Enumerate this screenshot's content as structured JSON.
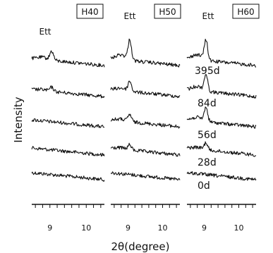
{
  "chart_data": {
    "type": "line",
    "xlabel": "2θ(degree)",
    "ylabel": "Intensity",
    "xlim": [
      8.5,
      10.5
    ],
    "xticks": [
      9,
      10
    ],
    "samples": [
      "0d",
      "28d",
      "56d",
      "84d",
      "395d"
    ],
    "panels": [
      {
        "name": "H40",
        "annotation": "Ett",
        "series": [
          {
            "name": "0d",
            "peak_2theta": 9.05,
            "peak_height": 0.0
          },
          {
            "name": "28d",
            "peak_2theta": 9.05,
            "peak_height": 0.0
          },
          {
            "name": "56d",
            "peak_2theta": 9.05,
            "peak_height": 0.0
          },
          {
            "name": "84d",
            "peak_2theta": 9.05,
            "peak_height": 0.2
          },
          {
            "name": "395d",
            "peak_2theta": 9.05,
            "peak_height": 0.45
          }
        ]
      },
      {
        "name": "H50",
        "annotation": "Ett",
        "series": [
          {
            "name": "0d",
            "peak_2theta": 9.05,
            "peak_height": 0.0
          },
          {
            "name": "28d",
            "peak_2theta": 9.05,
            "peak_height": 0.25
          },
          {
            "name": "56d",
            "peak_2theta": 9.05,
            "peak_height": 0.35
          },
          {
            "name": "84d",
            "peak_2theta": 9.05,
            "peak_height": 0.5
          },
          {
            "name": "395d",
            "peak_2theta": 9.05,
            "peak_height": 1.0
          }
        ]
      },
      {
        "name": "H60",
        "annotation": "Ett",
        "series": [
          {
            "name": "0d",
            "peak_2theta": 9.05,
            "peak_height": 0.0
          },
          {
            "name": "28d",
            "peak_2theta": 9.05,
            "peak_height": 0.35
          },
          {
            "name": "56d",
            "peak_2theta": 9.05,
            "peak_height": 0.7
          },
          {
            "name": "84d",
            "peak_2theta": 9.05,
            "peak_height": 0.85
          },
          {
            "name": "395d",
            "peak_2theta": 9.05,
            "peak_height": 1.0
          }
        ]
      }
    ]
  }
}
